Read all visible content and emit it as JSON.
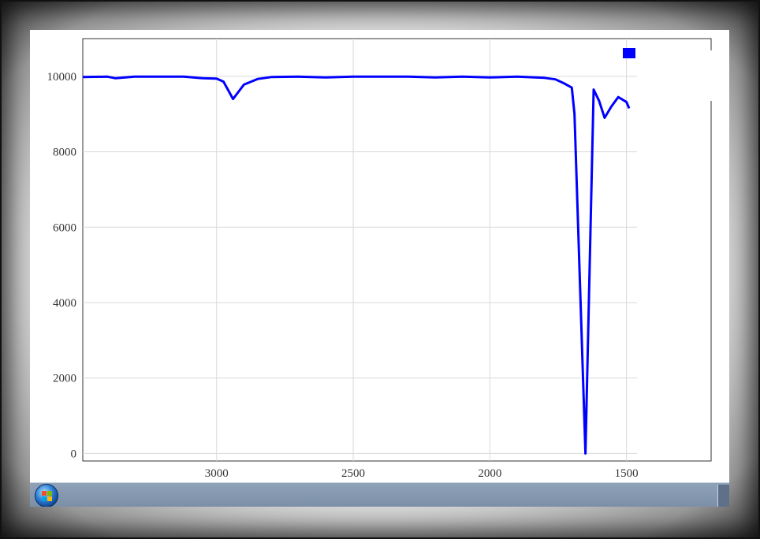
{
  "chart_data": {
    "type": "line",
    "title": "",
    "xlabel": "",
    "ylabel": "",
    "x_reversed": true,
    "xlim": [
      3490,
      1190
    ],
    "ylim": [
      -200,
      11000
    ],
    "xticks": [
      3000,
      2500,
      2000,
      1500
    ],
    "yticks": [
      0,
      2000,
      4000,
      6000,
      8000,
      10000
    ],
    "grid": true,
    "legend": {
      "placement": "top-right"
    },
    "colors": {
      "line": "#0000ff",
      "grid": "#d9d9d9",
      "axis": "#333333"
    },
    "series": [
      {
        "name": "",
        "x": [
          3490,
          3400,
          3370,
          3300,
          3200,
          3120,
          3050,
          3000,
          2975,
          2940,
          2900,
          2850,
          2800,
          2700,
          2600,
          2500,
          2400,
          2300,
          2200,
          2100,
          2000,
          1900,
          1800,
          1760,
          1730,
          1700,
          1690,
          1650,
          1620,
          1600,
          1580,
          1555,
          1530,
          1500,
          1490
        ],
        "y": [
          9980,
          9990,
          9950,
          9990,
          9990,
          9990,
          9950,
          9940,
          9860,
          9400,
          9780,
          9930,
          9980,
          9990,
          9970,
          9990,
          9990,
          9990,
          9970,
          9990,
          9970,
          9990,
          9960,
          9920,
          9820,
          9700,
          9000,
          0,
          9650,
          9350,
          8900,
          9200,
          9450,
          9320,
          9150
        ]
      }
    ]
  },
  "legend_label": "",
  "taskbar": {
    "start_label": "Start"
  }
}
